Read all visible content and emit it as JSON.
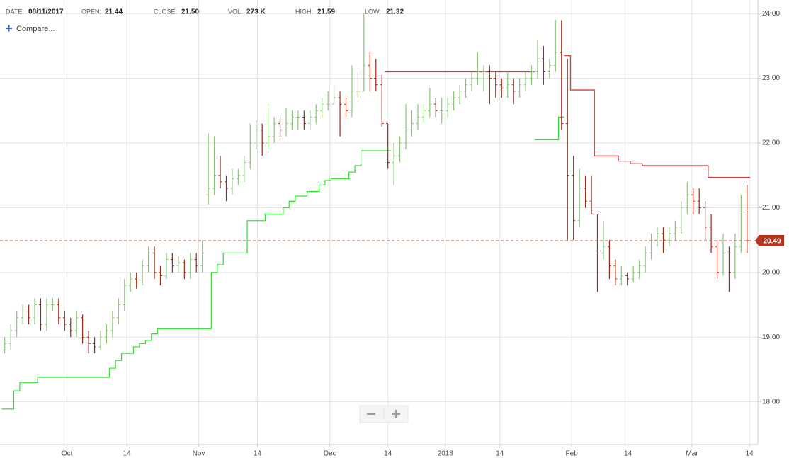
{
  "header": {
    "items": [
      {
        "label": "DATE:",
        "value": "08/11/2017"
      },
      {
        "label": "OPEN:",
        "value": "21.44"
      },
      {
        "label": "CLOSE:",
        "value": "21.50"
      },
      {
        "label": "VOL:",
        "value": "273 K"
      },
      {
        "label": "HIGH:",
        "value": "21.59"
      },
      {
        "label": "LOW:",
        "value": "21.32"
      }
    ],
    "compare": "Compare..."
  },
  "chart_data": {
    "type": "ohlc",
    "up_color": "#8cc47a",
    "down_color": "#9e2a17",
    "bars": [
      [
        18.8,
        19.0,
        18.75,
        18.9
      ],
      [
        18.9,
        19.2,
        18.8,
        19.1
      ],
      [
        19.1,
        19.4,
        19.0,
        19.3
      ],
      [
        19.3,
        19.5,
        19.2,
        19.4
      ],
      [
        19.4,
        19.5,
        19.2,
        19.3
      ],
      [
        19.3,
        19.6,
        19.2,
        19.5
      ],
      [
        19.5,
        19.6,
        19.1,
        19.2
      ],
      [
        19.2,
        19.6,
        19.1,
        19.5
      ],
      [
        19.5,
        19.6,
        19.4,
        19.5
      ],
      [
        19.5,
        19.6,
        19.2,
        19.3
      ],
      [
        19.3,
        19.4,
        19.1,
        19.2
      ],
      [
        19.2,
        19.3,
        19.0,
        19.1
      ],
      [
        19.1,
        19.4,
        19.0,
        19.3
      ],
      [
        19.3,
        19.35,
        18.9,
        19.0
      ],
      [
        19.0,
        19.1,
        18.75,
        18.9
      ],
      [
        18.9,
        19.0,
        18.75,
        18.85
      ],
      [
        18.85,
        19.1,
        18.8,
        19.0
      ],
      [
        19.0,
        19.2,
        18.9,
        19.1
      ],
      [
        19.1,
        19.4,
        19.0,
        19.3
      ],
      [
        19.3,
        19.6,
        19.2,
        19.5
      ],
      [
        19.5,
        19.9,
        19.4,
        19.8
      ],
      [
        19.8,
        20.0,
        19.7,
        19.9
      ],
      [
        19.9,
        20.0,
        19.75,
        19.85
      ],
      [
        19.85,
        20.2,
        19.8,
        20.1
      ],
      [
        20.1,
        20.4,
        20.0,
        20.3
      ],
      [
        20.3,
        20.4,
        19.9,
        20.0
      ],
      [
        20.0,
        20.1,
        19.8,
        19.95
      ],
      [
        19.95,
        20.3,
        19.9,
        20.2
      ],
      [
        20.2,
        20.3,
        20.0,
        20.1
      ],
      [
        20.1,
        20.25,
        20.0,
        20.15
      ],
      [
        20.15,
        20.2,
        19.9,
        20.0
      ],
      [
        20.0,
        20.3,
        19.9,
        20.2
      ],
      [
        20.2,
        20.3,
        20.0,
        20.1
      ],
      [
        20.1,
        20.5,
        20.0,
        20.3
      ],
      [
        21.2,
        22.15,
        21.05,
        21.3
      ],
      [
        21.3,
        22.1,
        21.2,
        21.5
      ],
      [
        21.5,
        21.8,
        21.3,
        21.4
      ],
      [
        21.4,
        21.5,
        21.1,
        21.3
      ],
      [
        21.3,
        21.6,
        21.2,
        21.45
      ],
      [
        21.45,
        21.6,
        21.35,
        21.5
      ],
      [
        21.5,
        21.8,
        21.4,
        21.7
      ],
      [
        21.7,
        22.3,
        21.6,
        22.0
      ],
      [
        22.0,
        22.35,
        21.9,
        22.2
      ],
      [
        22.2,
        22.3,
        21.8,
        22.0
      ],
      [
        22.0,
        22.6,
        21.9,
        22.1
      ],
      [
        22.1,
        22.4,
        22.0,
        22.3
      ],
      [
        22.3,
        22.4,
        22.1,
        22.2
      ],
      [
        22.2,
        22.55,
        22.1,
        22.3
      ],
      [
        22.3,
        22.5,
        22.2,
        22.4
      ],
      [
        22.4,
        22.5,
        22.2,
        22.4
      ],
      [
        22.4,
        22.5,
        22.2,
        22.3
      ],
      [
        22.3,
        22.5,
        22.2,
        22.4
      ],
      [
        22.4,
        22.6,
        22.3,
        22.5
      ],
      [
        22.5,
        22.7,
        22.4,
        22.6
      ],
      [
        22.6,
        22.8,
        22.5,
        22.6
      ],
      [
        22.6,
        22.9,
        22.6,
        22.7
      ],
      [
        22.7,
        22.8,
        22.1,
        22.6
      ],
      [
        22.6,
        22.7,
        22.4,
        22.5
      ],
      [
        22.5,
        23.2,
        22.4,
        22.8
      ],
      [
        22.8,
        23.1,
        22.7,
        22.8
      ],
      [
        22.8,
        24.0,
        22.8,
        23.2
      ],
      [
        23.2,
        23.4,
        22.8,
        23.0
      ],
      [
        23.0,
        23.3,
        22.8,
        22.9
      ],
      [
        22.9,
        23.05,
        22.25,
        22.3
      ],
      [
        22.3,
        22.3,
        21.6,
        21.7
      ],
      [
        21.7,
        22.0,
        21.35,
        21.8
      ],
      [
        21.8,
        22.1,
        21.7,
        22.0
      ],
      [
        22.0,
        22.6,
        21.9,
        22.2
      ],
      [
        22.2,
        22.5,
        22.1,
        22.3
      ],
      [
        22.3,
        22.6,
        22.2,
        22.4
      ],
      [
        22.4,
        22.6,
        22.3,
        22.5
      ],
      [
        22.5,
        22.85,
        22.4,
        22.6
      ],
      [
        22.6,
        22.7,
        22.4,
        22.5
      ],
      [
        22.5,
        22.7,
        22.3,
        22.5
      ],
      [
        22.5,
        22.7,
        22.4,
        22.6
      ],
      [
        22.6,
        22.8,
        22.5,
        22.7
      ],
      [
        22.7,
        22.9,
        22.6,
        22.8
      ],
      [
        22.8,
        23.0,
        22.7,
        22.9
      ],
      [
        22.9,
        23.1,
        22.8,
        23.0
      ],
      [
        23.0,
        23.4,
        22.9,
        23.1
      ],
      [
        23.1,
        23.2,
        22.8,
        23.1
      ],
      [
        23.1,
        23.2,
        22.6,
        23.0
      ],
      [
        23.0,
        23.1,
        22.7,
        22.9
      ],
      [
        22.9,
        23.0,
        22.7,
        22.85
      ],
      [
        22.85,
        23.1,
        22.7,
        22.9
      ],
      [
        22.9,
        23.0,
        22.6,
        22.8
      ],
      [
        22.8,
        23.0,
        22.7,
        22.9
      ],
      [
        22.9,
        23.1,
        22.8,
        23.0
      ],
      [
        23.0,
        23.2,
        22.9,
        23.1
      ],
      [
        23.1,
        23.6,
        23.0,
        23.3
      ],
      [
        23.3,
        23.5,
        22.9,
        23.1
      ],
      [
        23.1,
        23.3,
        23.0,
        23.2
      ],
      [
        23.2,
        23.9,
        23.1,
        23.4
      ],
      [
        23.4,
        23.9,
        22.2,
        22.3
      ],
      [
        22.3,
        23.3,
        20.5,
        21.5
      ],
      [
        21.5,
        21.8,
        20.5,
        20.8
      ],
      [
        20.8,
        21.6,
        20.7,
        21.3
      ],
      [
        21.3,
        21.5,
        21.0,
        21.1
      ],
      [
        21.1,
        21.5,
        20.9,
        20.9
      ],
      [
        20.9,
        20.9,
        19.7,
        20.3
      ],
      [
        20.3,
        20.8,
        20.2,
        20.4
      ],
      [
        20.4,
        20.5,
        19.9,
        20.1
      ],
      [
        20.1,
        20.2,
        19.8,
        19.9
      ],
      [
        19.9,
        20.1,
        19.8,
        19.95
      ],
      [
        19.95,
        20.0,
        19.8,
        19.9
      ],
      [
        19.9,
        20.1,
        19.85,
        20.0
      ],
      [
        20.0,
        20.2,
        19.9,
        20.1
      ],
      [
        20.1,
        20.4,
        20.0,
        20.3
      ],
      [
        20.3,
        20.6,
        20.2,
        20.5
      ],
      [
        20.5,
        20.7,
        20.4,
        20.6
      ],
      [
        20.6,
        20.7,
        20.3,
        20.5
      ],
      [
        20.5,
        20.7,
        20.4,
        20.6
      ],
      [
        20.6,
        20.8,
        20.5,
        20.7
      ],
      [
        20.7,
        21.1,
        20.6,
        21.0
      ],
      [
        21.0,
        21.4,
        20.9,
        21.2
      ],
      [
        21.2,
        21.3,
        20.9,
        21.1
      ],
      [
        21.1,
        21.3,
        20.9,
        21.0
      ],
      [
        21.0,
        21.1,
        20.5,
        20.7
      ],
      [
        20.7,
        20.9,
        20.3,
        20.4
      ],
      [
        20.4,
        20.5,
        19.9,
        20.0
      ],
      [
        20.0,
        20.6,
        19.95,
        20.3
      ],
      [
        20.3,
        20.4,
        19.7,
        20.0
      ],
      [
        20.0,
        20.6,
        19.9,
        20.4
      ],
      [
        20.4,
        21.2,
        20.3,
        20.9
      ],
      [
        20.9,
        21.35,
        20.3,
        20.49
      ]
    ],
    "series": [
      {
        "color": "#33e633",
        "values": [
          17.89,
          17.89,
          18.17,
          18.3,
          18.3,
          18.3,
          18.38,
          18.38,
          18.38,
          18.38,
          18.38,
          18.38,
          18.38,
          18.38,
          18.38,
          18.38,
          18.38,
          18.38,
          18.52,
          18.64,
          18.75,
          18.75,
          18.85,
          18.9,
          18.95,
          19.05,
          19.13,
          19.13,
          19.13,
          19.13,
          19.13,
          19.13,
          19.13,
          19.13,
          19.13,
          20.0,
          20.12,
          20.3,
          20.3,
          20.3,
          20.3,
          20.8,
          20.8,
          20.8,
          20.9,
          20.9,
          20.9,
          21.0,
          21.1,
          21.18,
          21.18,
          21.25,
          21.25,
          21.35,
          21.42,
          21.45,
          21.45,
          21.45,
          21.55,
          21.65,
          21.88,
          21.88,
          21.88,
          21.88,
          21.88,
          null,
          null,
          null,
          null,
          null,
          null,
          null,
          null,
          null,
          null,
          null,
          null,
          null,
          null,
          null,
          null,
          null,
          null,
          null,
          null,
          null,
          null,
          null,
          null,
          22.05,
          22.05,
          22.05,
          22.05,
          22.4,
          null,
          null,
          null,
          null,
          null,
          null,
          null,
          null,
          null,
          null,
          null,
          null,
          null,
          null,
          null,
          null,
          null,
          null,
          null,
          null,
          null,
          null,
          null,
          null,
          null,
          null,
          null,
          null,
          null,
          null,
          null
        ]
      },
      {
        "color": "#e03a3a",
        "values": [
          null,
          null,
          null,
          null,
          null,
          null,
          null,
          null,
          null,
          null,
          null,
          null,
          null,
          null,
          null,
          null,
          null,
          null,
          null,
          null,
          null,
          null,
          null,
          null,
          null,
          null,
          null,
          null,
          null,
          null,
          null,
          null,
          null,
          null,
          null,
          null,
          null,
          null,
          null,
          null,
          null,
          null,
          null,
          null,
          null,
          null,
          null,
          null,
          null,
          null,
          null,
          null,
          null,
          null,
          null,
          null,
          null,
          null,
          null,
          null,
          null,
          null,
          null,
          null,
          23.1,
          23.1,
          23.1,
          23.1,
          23.1,
          23.1,
          23.1,
          23.1,
          23.1,
          23.1,
          23.1,
          23.1,
          23.1,
          23.1,
          23.1,
          23.1,
          23.1,
          23.1,
          23.1,
          23.1,
          23.1,
          23.1,
          23.1,
          23.1,
          23.1,
          null,
          null,
          null,
          null,
          null,
          23.35,
          22.82,
          22.82,
          22.82,
          22.82,
          21.8,
          21.8,
          21.8,
          21.8,
          21.72,
          21.72,
          21.68,
          21.68,
          21.65,
          21.65,
          21.65,
          21.65,
          21.65,
          21.65,
          21.65,
          21.65,
          21.65,
          21.65,
          21.65,
          21.47,
          21.47,
          21.47,
          21.47,
          21.47,
          21.47,
          21.47
        ]
      }
    ],
    "last_price": 20.49,
    "last_color": "#b8341e",
    "xlim": [
      -0.8,
      125.8
    ],
    "xticks": [
      {
        "value": 10.4,
        "label": "Oct"
      },
      {
        "value": 20.4,
        "label": "14"
      },
      {
        "value": 32.4,
        "label": "Nov"
      },
      {
        "value": 42.2,
        "label": "14"
      },
      {
        "value": 54.3,
        "label": "Dec"
      },
      {
        "value": 64.0,
        "label": "14"
      },
      {
        "value": 73.6,
        "label": "2018"
      },
      {
        "value": 82.7,
        "label": "14"
      },
      {
        "value": 94.7,
        "label": "Feb"
      },
      {
        "value": 104.1,
        "label": "14"
      },
      {
        "value": 114.8,
        "label": "Mar"
      },
      {
        "value": 124.4,
        "label": "14"
      }
    ],
    "ylim": [
      17.34,
      24.21
    ],
    "yticks": [
      {
        "value": 18,
        "label": "18.00"
      },
      {
        "value": 19,
        "label": "19.00"
      },
      {
        "value": 20,
        "label": "20.00"
      },
      {
        "value": 21,
        "label": "21.00"
      },
      {
        "value": 22,
        "label": "22.00"
      },
      {
        "value": 23,
        "label": "23.00"
      },
      {
        "value": 24,
        "label": "24.00"
      }
    ],
    "grid": true
  }
}
